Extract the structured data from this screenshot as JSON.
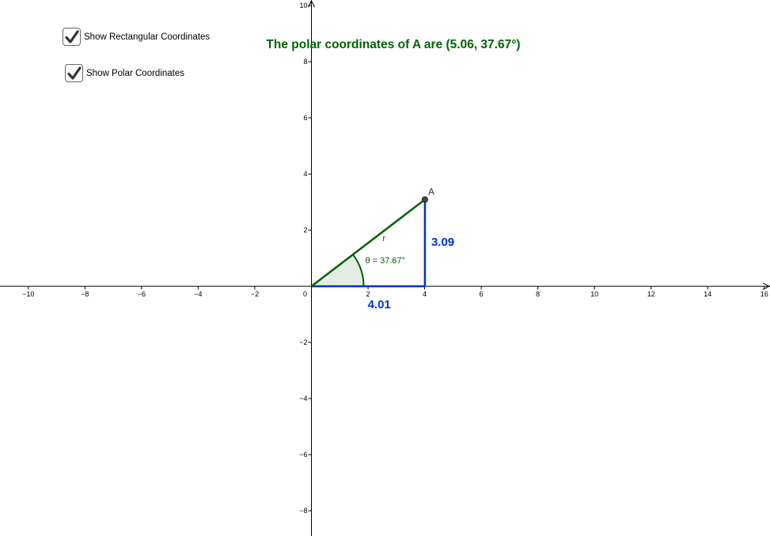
{
  "checkboxes": [
    {
      "label": "Show Rectangular Coordinates",
      "checked": true
    },
    {
      "label": "Show Polar Coordinates",
      "checked": true
    }
  ],
  "polar_text": "The polar coordinates of A are (5.06, 37.67°)",
  "point": {
    "name": "A",
    "x": 4.01,
    "y": 3.09
  },
  "labels": {
    "x_value": "4.01",
    "y_value": "3.09",
    "r": "r",
    "theta": "θ = 37.67°"
  },
  "axes": {
    "x_range": [
      -11,
      16.2
    ],
    "y_range": [
      -8.9,
      10.2
    ],
    "x_ticks": [
      "−10",
      "−8",
      "−6",
      "−4",
      "−2",
      "0",
      "2",
      "4",
      "6",
      "8",
      "10",
      "12",
      "14",
      "16"
    ],
    "y_ticks": [
      "10",
      "8",
      "6",
      "4",
      "2",
      "−2",
      "−4",
      "−6",
      "−8"
    ]
  },
  "colors": {
    "polar": "#006400",
    "rect": "#0033cc",
    "sector_fill": "#e3eee3",
    "point": "#444444"
  }
}
